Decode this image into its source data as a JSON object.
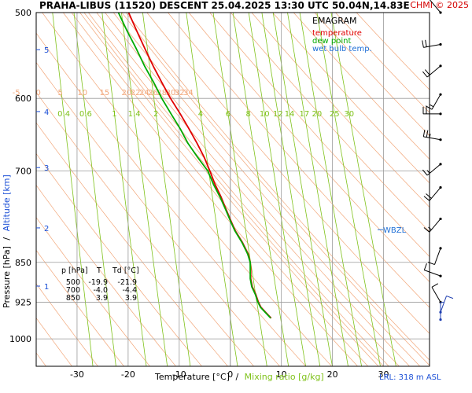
{
  "header": {
    "title": "PRAHA-LIBUS (11520)  DESCENT  25.04.2025 13:30 UTC  50.04N,14.83E",
    "copyright": "CHMI © 2025"
  },
  "legend": {
    "title": "EMAGRAM",
    "items": [
      {
        "label": "temperature",
        "color": "#e00000"
      },
      {
        "label": "dew point",
        "color": "#00aa00"
      },
      {
        "label": "wet bulb temp.",
        "color": "#1f6fd6"
      }
    ]
  },
  "axes": {
    "ylabel_pressure": "Pressure [hPa]",
    "ylabel_sep": "/",
    "ylabel_altitude": "Altitude [km]",
    "xlabel_temp": "Temperature [°C]",
    "xlabel_sep": "/",
    "xlabel_mix": "Mixing ratio [g/kg]",
    "footer": "LRL: 318 m ASL",
    "wbzl_label": "WBZL"
  },
  "table": {
    "headers": [
      "p [hPa]",
      "T",
      "Td [°C]"
    ],
    "rows": [
      [
        "500",
        "-19.9",
        "-21.9"
      ],
      [
        "700",
        "-4.0",
        "-4.4"
      ],
      [
        "850",
        "3.9",
        "3.9"
      ]
    ]
  },
  "colors": {
    "temperature": "#e00000",
    "dewpoint": "#00aa00",
    "wetbulb": "#1f6fd6",
    "isotherm": "#9a9a9a",
    "mixing_ratio": "#7fc21a",
    "dry_adiabat": "#f2a77a",
    "frame": "#000000",
    "copyright": "#d40000"
  },
  "chart_data": {
    "type": "line",
    "title": "EMAGRAM",
    "xlabel": "Temperature [°C] / Mixing ratio [g/kg]",
    "ylabel": "Pressure [hPa] / Altitude [km]",
    "xlim": [
      -38,
      39
    ],
    "ylim": [
      1060,
      500
    ],
    "y_scale": "log",
    "x_ticks": [
      -30,
      -20,
      -10,
      0,
      10,
      20,
      30
    ],
    "y_ticks": [
      500,
      600,
      700,
      850,
      925,
      1000
    ],
    "altitude_ticks": [
      {
        "km": 1,
        "p": 894
      },
      {
        "km": 2,
        "p": 790
      },
      {
        "km": 3,
        "p": 695
      },
      {
        "km": 4,
        "p": 617
      },
      {
        "km": 5,
        "p": 541
      }
    ],
    "mixing_ratio_labels": [
      "0.4",
      "0.6",
      "1",
      "1.4",
      "2",
      "4",
      "6",
      "8",
      "10",
      "12",
      "14",
      "17",
      "20",
      "25",
      "30"
    ],
    "mixing_ratio_values": [
      0.4,
      0.6,
      1,
      1.4,
      2,
      4,
      6,
      8,
      10,
      12,
      14,
      17,
      20,
      25,
      30
    ],
    "dry_adiabat_labels": [
      "-5",
      "0",
      "5",
      "10",
      "15",
      "20",
      "22",
      "24",
      "26",
      "28",
      "30",
      "32",
      "34"
    ],
    "dry_adiabat_values": [
      -5,
      0,
      5,
      10,
      15,
      20,
      22,
      24,
      26,
      28,
      30,
      32,
      34
    ],
    "wbzl_pressure": 793,
    "series": [
      {
        "name": "temperature",
        "points": [
          {
            "p": 957,
            "t": 8.0
          },
          {
            "p": 946,
            "t": 7.0
          },
          {
            "p": 935,
            "t": 6.0
          },
          {
            "p": 925,
            "t": 5.5
          },
          {
            "p": 910,
            "t": 5.0
          },
          {
            "p": 895,
            "t": 4.3
          },
          {
            "p": 880,
            "t": 4.0
          },
          {
            "p": 865,
            "t": 4.0
          },
          {
            "p": 850,
            "t": 3.9
          },
          {
            "p": 835,
            "t": 3.5
          },
          {
            "p": 815,
            "t": 2.4
          },
          {
            "p": 795,
            "t": 1.0
          },
          {
            "p": 780,
            "t": 0.2
          },
          {
            "p": 760,
            "t": -0.8
          },
          {
            "p": 740,
            "t": -1.8
          },
          {
            "p": 720,
            "t": -3.0
          },
          {
            "p": 700,
            "t": -4.0
          },
          {
            "p": 680,
            "t": -5.1
          },
          {
            "p": 660,
            "t": -6.5
          },
          {
            "p": 640,
            "t": -8.1
          },
          {
            "p": 620,
            "t": -9.8
          },
          {
            "p": 600,
            "t": -11.7
          },
          {
            "p": 580,
            "t": -13.4
          },
          {
            "p": 560,
            "t": -15.1
          },
          {
            "p": 540,
            "t": -16.7
          },
          {
            "p": 520,
            "t": -18.3
          },
          {
            "p": 500,
            "t": -19.9
          }
        ]
      },
      {
        "name": "dew point",
        "points": [
          {
            "p": 957,
            "t": 7.9
          },
          {
            "p": 946,
            "t": 6.9
          },
          {
            "p": 935,
            "t": 5.9
          },
          {
            "p": 925,
            "t": 5.4
          },
          {
            "p": 910,
            "t": 4.9
          },
          {
            "p": 895,
            "t": 4.2
          },
          {
            "p": 880,
            "t": 3.9
          },
          {
            "p": 865,
            "t": 3.9
          },
          {
            "p": 850,
            "t": 3.9
          },
          {
            "p": 835,
            "t": 3.4
          },
          {
            "p": 815,
            "t": 2.3
          },
          {
            "p": 795,
            "t": 0.9
          },
          {
            "p": 780,
            "t": 0.1
          },
          {
            "p": 760,
            "t": -0.9
          },
          {
            "p": 740,
            "t": -2.0
          },
          {
            "p": 720,
            "t": -3.3
          },
          {
            "p": 700,
            "t": -4.4
          },
          {
            "p": 680,
            "t": -6.4
          },
          {
            "p": 660,
            "t": -8.3
          },
          {
            "p": 640,
            "t": -9.8
          },
          {
            "p": 620,
            "t": -11.6
          },
          {
            "p": 600,
            "t": -13.4
          },
          {
            "p": 580,
            "t": -15.0
          },
          {
            "p": 560,
            "t": -16.8
          },
          {
            "p": 540,
            "t": -18.4
          },
          {
            "p": 520,
            "t": -20.2
          },
          {
            "p": 500,
            "t": -21.9
          }
        ]
      }
    ],
    "wind_barbs": [
      {
        "p": 500,
        "dir": 320,
        "kt": 10
      },
      {
        "p": 535,
        "dir": 260,
        "kt": 20
      },
      {
        "p": 560,
        "dir": 230,
        "kt": 20
      },
      {
        "p": 595,
        "dir": 210,
        "kt": 15
      },
      {
        "p": 620,
        "dir": 270,
        "kt": 25
      },
      {
        "p": 655,
        "dir": 280,
        "kt": 25
      },
      {
        "p": 690,
        "dir": 230,
        "kt": 15
      },
      {
        "p": 725,
        "dir": 220,
        "kt": 20
      },
      {
        "p": 775,
        "dir": 220,
        "kt": 15
      },
      {
        "p": 825,
        "dir": 200,
        "kt": 10
      },
      {
        "p": 875,
        "dir": 290,
        "kt": 10
      },
      {
        "p": 925,
        "dir": 330,
        "kt": 10
      },
      {
        "p": 945,
        "dir": 20,
        "kt": 10
      },
      {
        "p": 960,
        "dir": 360,
        "kt": 5
      }
    ]
  }
}
